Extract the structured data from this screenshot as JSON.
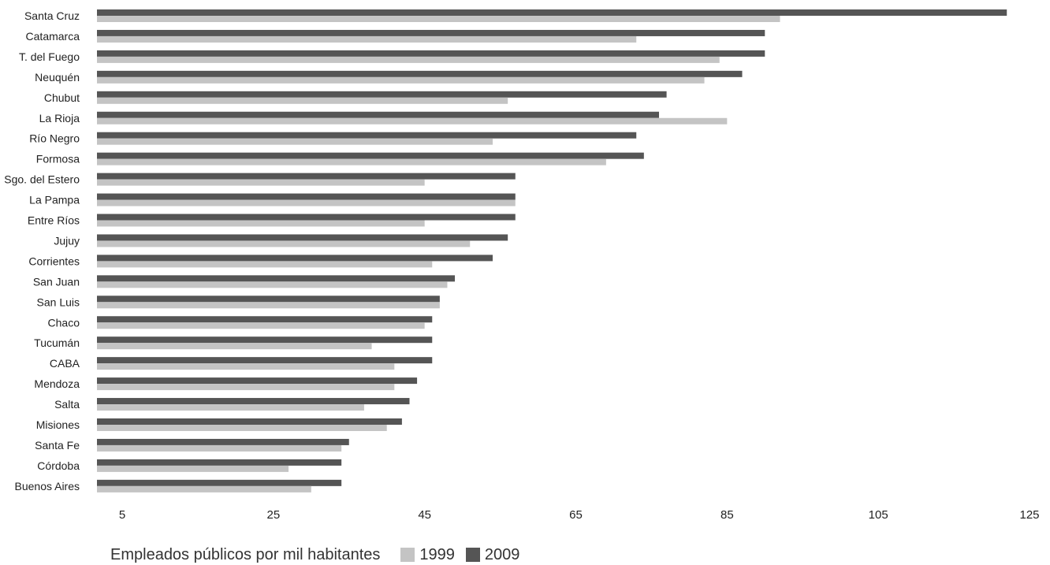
{
  "chart_data": {
    "type": "bar",
    "orientation": "horizontal",
    "title": "",
    "xlabel": "",
    "ylabel": "",
    "xlim": [
      5,
      125
    ],
    "xticks": [
      5,
      25,
      45,
      65,
      85,
      105,
      125
    ],
    "grid": false,
    "legend_position": "bottom-left",
    "legend_title": "Empleados públicos por mil habitantes",
    "categories": [
      "Santa Cruz",
      "Catamarca",
      "T. del Fuego",
      "Neuquén",
      "Chubut",
      "La Rioja",
      "Río Negro",
      "Formosa",
      "Sgo. del Estero",
      "La Pampa",
      "Entre Ríos",
      "Jujuy",
      "Corrientes",
      "San Juan",
      "San Luis",
      "Chaco",
      "Tucumán",
      "CABA",
      "Mendoza",
      "Salta",
      "Misiones",
      "Santa Fe",
      "Córdoba",
      "Buenos Aires"
    ],
    "series": [
      {
        "name": "2009",
        "color": "#555555",
        "values": [
          122,
          90,
          90,
          87,
          77,
          76,
          73,
          74,
          57,
          57,
          57,
          56,
          54,
          49,
          47,
          46,
          46,
          46,
          44,
          43,
          42,
          35,
          34,
          34
        ]
      },
      {
        "name": "1999",
        "color": "#c4c4c4",
        "values": [
          92,
          73,
          84,
          82,
          56,
          85,
          54,
          69,
          45,
          57,
          45,
          51,
          46,
          48,
          47,
          45,
          38,
          41,
          41,
          37,
          40,
          34,
          27,
          30
        ]
      }
    ]
  }
}
